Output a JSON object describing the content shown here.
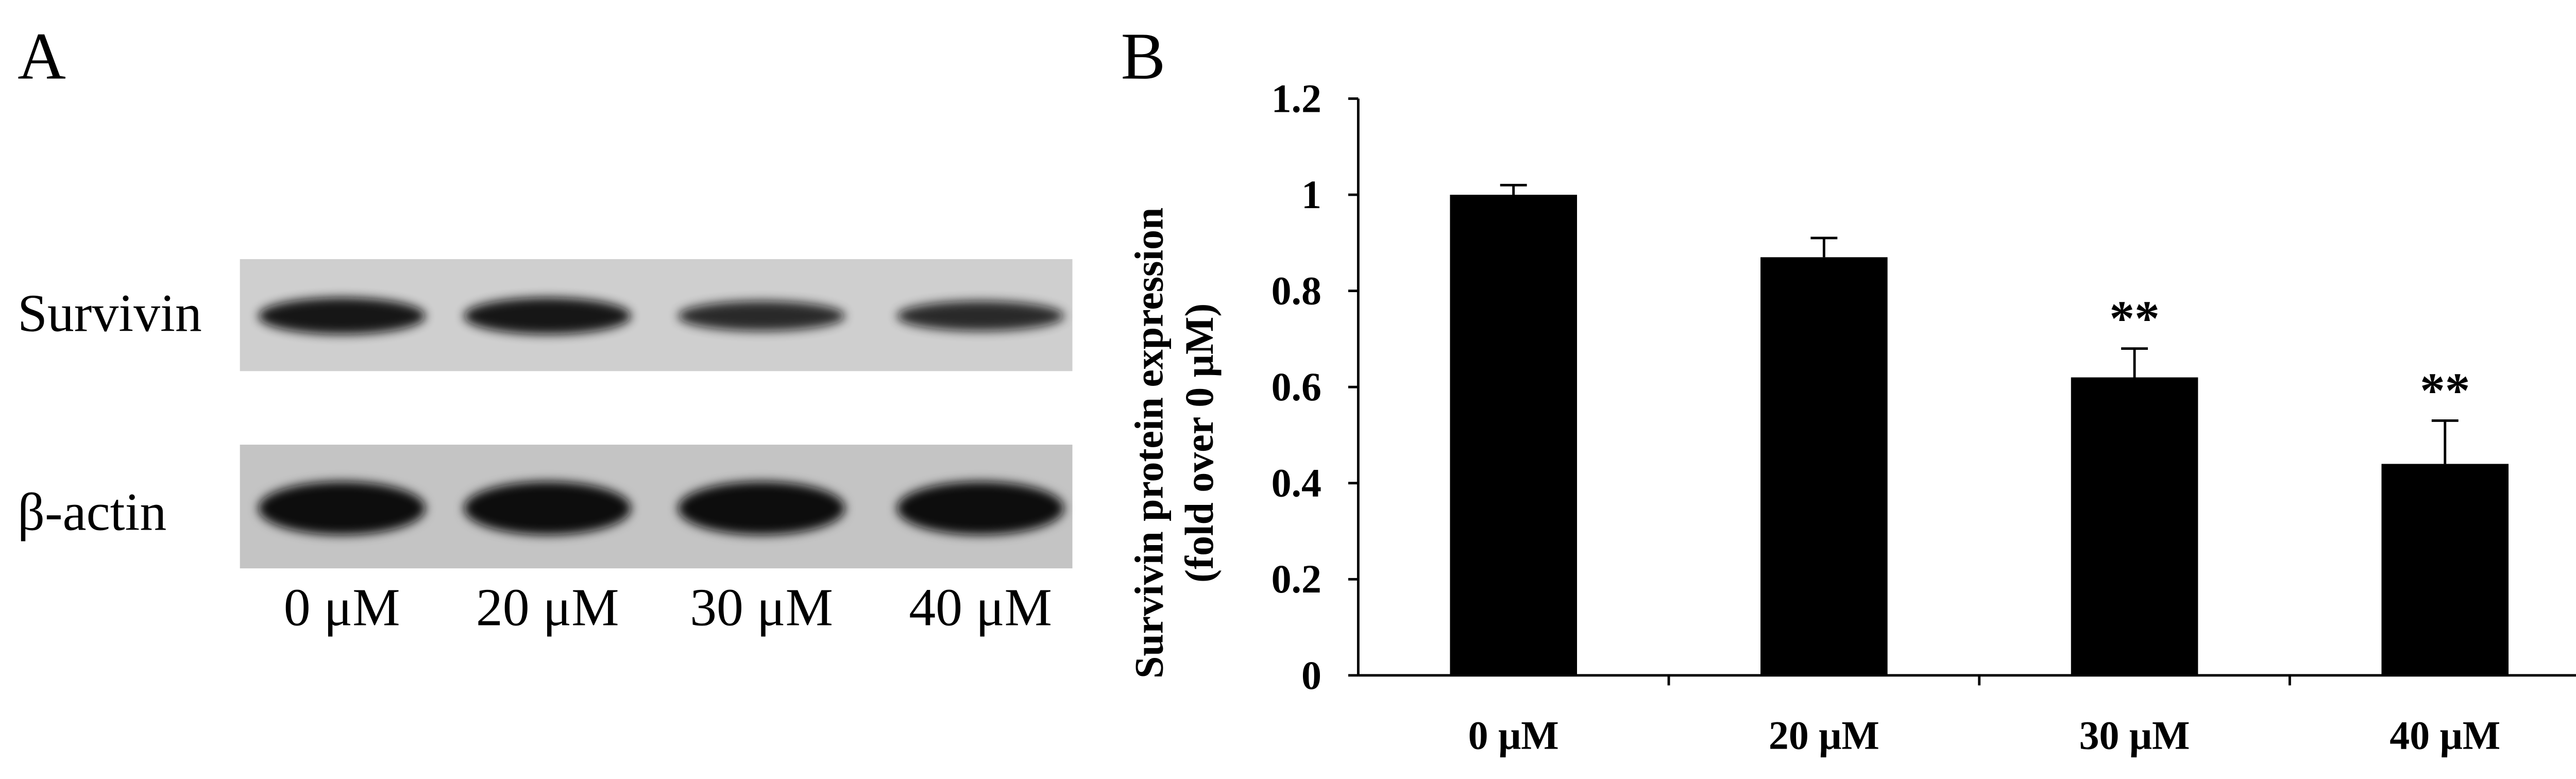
{
  "panel_a": {
    "label": "A",
    "rows": [
      "Survivin",
      "β-actin"
    ],
    "lanes": [
      "0 μM",
      "20 μM",
      "30 μM",
      "40 μM"
    ]
  },
  "chart_data": {
    "type": "bar",
    "panel_label": "B",
    "y_label": [
      "Survivin protein expression",
      "(fold over 0 μM)"
    ],
    "categories": [
      "0 μM",
      "20 μM",
      "30 μM",
      "40 μM"
    ],
    "values": [
      1.0,
      0.87,
      0.62,
      0.44
    ],
    "errors": [
      0.02,
      0.04,
      0.06,
      0.09
    ],
    "annotations": [
      null,
      null,
      "**",
      "**"
    ],
    "color": "#000000",
    "ylim": [
      0,
      1.2
    ],
    "yticks": [
      0,
      0.2,
      0.4,
      0.6,
      0.8,
      1,
      1.2
    ]
  }
}
